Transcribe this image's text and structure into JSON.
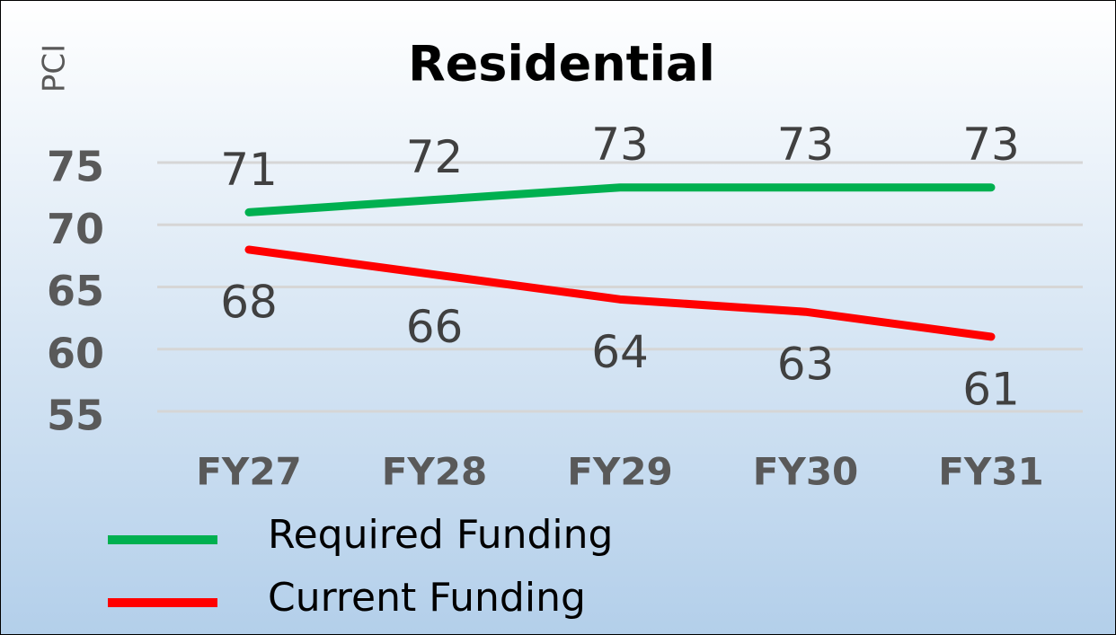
{
  "chart_data": {
    "type": "line",
    "title": "Residential",
    "y_label": "PCI",
    "categories": [
      "FY27",
      "FY28",
      "FY29",
      "FY30",
      "FY31"
    ],
    "series": [
      {
        "name": "Required Funding",
        "color": "#00b050",
        "values": [
          71,
          72,
          73,
          73,
          73
        ],
        "label_position": "above"
      },
      {
        "name": "Current Funding",
        "color": "#ff0000",
        "values": [
          68,
          66,
          64,
          63,
          61
        ],
        "label_position": "below"
      }
    ],
    "ylim": [
      55,
      75
    ],
    "yticks": [
      55,
      60,
      65,
      70,
      75
    ],
    "grid": true,
    "legend": "bottom-left"
  }
}
